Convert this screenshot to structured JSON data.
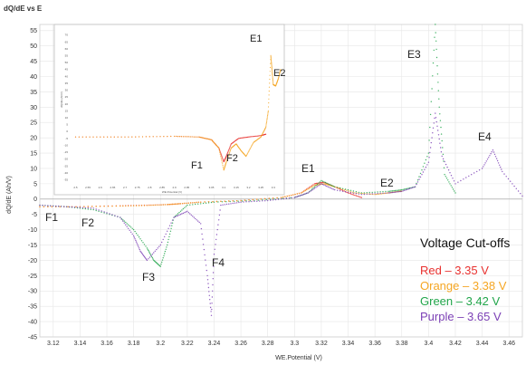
{
  "chart_data": [
    {
      "type": "scatter",
      "title": "dQ/dE vs E",
      "xlabel": "WE.Potential (V)",
      "ylabel": "dQ/dE (Ah/V)",
      "xlim": [
        3.11,
        3.47
      ],
      "ylim": [
        -45,
        57
      ],
      "x_ticks": [
        "3.12",
        "3.14",
        "3.16",
        "3.18",
        "3.2",
        "3.22",
        "3.24",
        "3.26",
        "3.28",
        "3.3",
        "3.32",
        "3.34",
        "3.36",
        "3.38",
        "3.4",
        "3.42",
        "3.44",
        "3.46"
      ],
      "y_ticks": [
        "55",
        "50",
        "45",
        "40",
        "35",
        "30",
        "25",
        "20",
        "15",
        "10",
        "5",
        "0",
        "-5",
        "-10",
        "-15",
        "-20",
        "-25",
        "-30",
        "-35",
        "-40",
        "-45"
      ],
      "grid": true,
      "legend_position": "bottom-right",
      "legend_title": "Voltage Cut-offs",
      "series": [
        {
          "name": "Red – 3.35 V",
          "color": "#e8312f",
          "x": [
            3.11,
            3.14,
            3.17,
            3.19,
            3.205,
            3.215,
            3.23,
            3.26,
            3.29,
            3.305,
            3.315,
            3.322,
            3.33,
            3.34,
            3.35
          ],
          "y": [
            -2.5,
            -2.5,
            -2.2,
            -2,
            -1.8,
            -1.5,
            -1,
            -0.5,
            0.5,
            2,
            5,
            5.5,
            4,
            2,
            0.5
          ]
        },
        {
          "name": "Orange – 3.38 V",
          "color": "#f5a623",
          "x": [
            3.11,
            3.14,
            3.17,
            3.19,
            3.205,
            3.215,
            3.23,
            3.26,
            3.29,
            3.305,
            3.315,
            3.322,
            3.33,
            3.345,
            3.36,
            3.37,
            3.378,
            3.38
          ],
          "y": [
            -2.5,
            -2.5,
            -2.3,
            -2.1,
            -1.8,
            -1.5,
            -1,
            -0.5,
            0.5,
            2,
            4.5,
            5,
            4,
            2,
            1.5,
            2,
            2.5,
            2.5
          ]
        },
        {
          "name": "Green – 3.42 V",
          "color": "#21a54a",
          "x": [
            3.11,
            3.13,
            3.15,
            3.17,
            3.18,
            3.19,
            3.195,
            3.2,
            3.205,
            3.21,
            3.22,
            3.24,
            3.27,
            3.3,
            3.31,
            3.32,
            3.33,
            3.35,
            3.37,
            3.38,
            3.39,
            3.4,
            3.405,
            3.408,
            3.412,
            3.42
          ],
          "y": [
            -2,
            -2.5,
            -3.5,
            -6,
            -10,
            -16,
            -20,
            -22,
            -15,
            -6,
            -2,
            -1,
            -0.5,
            0.5,
            2,
            6,
            4,
            2,
            2.5,
            3,
            4,
            15,
            57,
            30,
            8,
            2
          ]
        },
        {
          "name": "Purple – 3.65 V",
          "color": "#7b3fb5",
          "x": [
            3.11,
            3.13,
            3.15,
            3.17,
            3.18,
            3.185,
            3.19,
            3.2,
            3.21,
            3.22,
            3.23,
            3.235,
            3.238,
            3.24,
            3.245,
            3.26,
            3.28,
            3.3,
            3.31,
            3.32,
            3.33,
            3.35,
            3.37,
            3.38,
            3.39,
            3.4,
            3.405,
            3.41,
            3.42,
            3.44,
            3.448,
            3.455,
            3.47
          ],
          "y": [
            -2,
            -2.5,
            -3,
            -6,
            -12,
            -17,
            -20,
            -15,
            -6,
            -4,
            -8,
            -25,
            -38,
            -18,
            -2,
            -1,
            -0.5,
            0.5,
            2,
            5,
            3,
            1.5,
            2,
            2.5,
            4,
            12,
            28,
            14,
            5,
            10,
            16,
            9,
            1
          ]
        }
      ]
    },
    {
      "type": "scatter",
      "title": "",
      "xlabel": "WE.Potential (V)",
      "ylabel": "dQ/dE (Ah/V)",
      "xlim": [
        2.48,
        3.33
      ],
      "ylim": [
        -38,
        75
      ],
      "x_ticks": [
        "2.5",
        "2.55",
        "2.6",
        "2.65",
        "2.7",
        "2.75",
        "2.8",
        "2.85",
        "2.9",
        "2.95",
        "3",
        "3.05",
        "3.1",
        "3.15",
        "3.2",
        "3.25",
        "3.3"
      ],
      "y_ticks": [
        "70",
        "65",
        "60",
        "55",
        "50",
        "45",
        "40",
        "35",
        "30",
        "25",
        "20",
        "15",
        "10",
        "5",
        "0",
        "-5",
        "-10",
        "-15",
        "-20",
        "-25",
        "-30",
        "-35"
      ],
      "series": [
        {
          "name": "Red",
          "color": "#e8312f",
          "x": [
            2.5,
            2.7,
            2.9,
            3.0,
            3.05,
            3.08,
            3.1,
            3.11,
            3.13,
            3.16,
            3.2,
            3.25,
            3.27
          ],
          "y": [
            -4,
            -4,
            -3.5,
            -4,
            -6,
            -12,
            -22,
            -18,
            -9,
            -5,
            -4,
            -3,
            -2
          ]
        },
        {
          "name": "Orange",
          "color": "#f5a623",
          "x": [
            2.5,
            2.7,
            2.9,
            3.0,
            3.05,
            3.08,
            3.1,
            3.11,
            3.13,
            3.15,
            3.17,
            3.19,
            3.22,
            3.25,
            3.27,
            3.28,
            3.29,
            3.295,
            3.3,
            3.31,
            3.32,
            3.33
          ],
          "y": [
            -4,
            -4,
            -3.5,
            -4,
            -6,
            -12,
            -28,
            -22,
            -12,
            -9,
            -14,
            -18,
            -8,
            -4,
            3,
            15,
            55,
            45,
            34,
            33,
            38,
            45
          ]
        }
      ]
    }
  ],
  "annotations": {
    "main": {
      "E1": "E1",
      "E2": "E2",
      "E3": "E3",
      "E4": "E4",
      "F1": "F1",
      "F2": "F2",
      "F3": "F3",
      "F4": "F4"
    },
    "inset": {
      "E1": "E1",
      "E2": "E2",
      "F1": "F1",
      "F2": "F2"
    }
  },
  "colors": {
    "red": "#e8312f",
    "orange": "#f5a623",
    "green": "#21a54a",
    "purple": "#7b3fb5",
    "background": "#ffffff",
    "grid": "#e6e6e6"
  }
}
